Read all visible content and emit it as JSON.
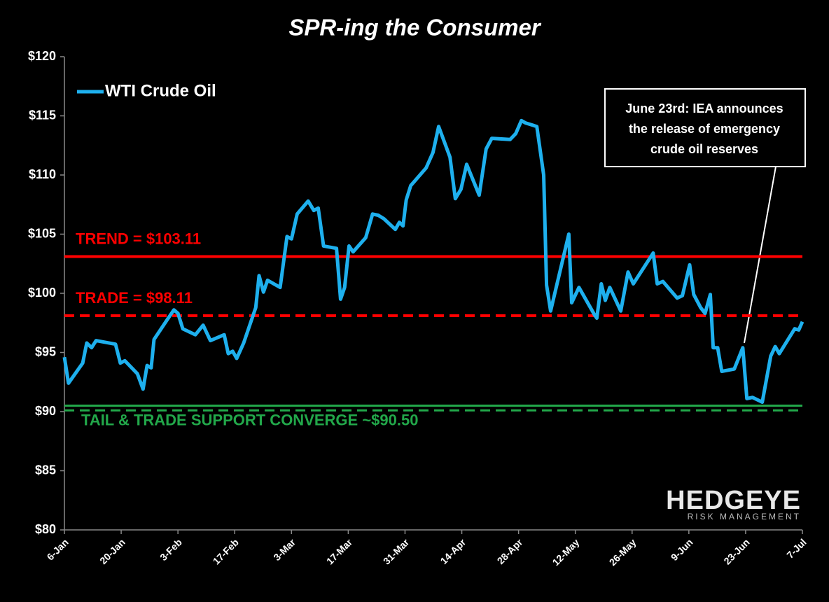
{
  "chart_data": {
    "type": "line",
    "title": "SPR-ing the Consumer",
    "x": [
      0,
      1.0,
      4.5,
      5.5,
      6.7,
      7.8,
      12.6,
      13.8,
      14.9,
      18.0,
      19.4,
      20.4,
      21.4,
      22.1,
      25.6,
      27.0,
      28.0,
      29.2,
      32.3,
      34.2,
      36.0,
      39.4,
      40.4,
      41.5,
      42.5,
      44.2,
      47.2,
      48.0,
      49.1,
      50.1,
      53.2,
      54.9,
      56.0,
      57.4,
      60.1,
      61.5,
      62.6,
      63.9,
      67.1,
      68.1,
      69.1,
      70.2,
      71.2,
      74.3,
      76.0,
      77.4,
      78.8,
      81.6,
      82.6,
      83.5,
      84.3,
      85.4,
      89.2,
      90.9,
      92.3,
      95.1,
      96.4,
      97.8,
      99.2,
      102.3,
      104.0,
      105.4,
      109.9,
      111.3,
      112.7,
      113.7,
      116.5,
      118.2,
      118.9,
      119.9,
      124.4,
      125.1,
      126.9,
      130.7,
      131.3,
      132.4,
      133.4,
      134.5,
      137.2,
      139.0,
      140.3,
      145.2,
      146.2,
      147.6,
      151.1,
      152.4,
      154.2,
      155.2,
      156.9,
      158.0,
      159.3,
      160.0,
      161.1,
      162.1,
      165.2,
      167.3,
      168.3,
      169.7,
      172.1,
      174.2,
      175.3,
      176.3,
      180.1,
      181.1,
      182.0
    ],
    "series": [
      {
        "name": "WTI Crude Oil",
        "color": "#1eb0ee",
        "values": [
          94.6,
          92.4,
          94.1,
          95.8,
          95.4,
          96.0,
          95.7,
          94.1,
          94.3,
          93.2,
          91.9,
          93.9,
          93.7,
          96.1,
          97.9,
          98.6,
          98.3,
          97.0,
          96.5,
          97.3,
          96.0,
          96.5,
          94.9,
          95.1,
          94.5,
          95.8,
          98.8,
          101.5,
          100.1,
          101.1,
          100.5,
          104.8,
          104.6,
          106.7,
          107.8,
          107.0,
          107.2,
          104.0,
          103.8,
          99.5,
          100.5,
          104.0,
          103.5,
          104.7,
          106.7,
          106.6,
          106.3,
          105.4,
          106.0,
          105.7,
          107.9,
          109.1,
          110.6,
          111.9,
          114.1,
          111.5,
          108.0,
          108.8,
          110.9,
          108.3,
          112.2,
          113.1,
          113.0,
          113.5,
          114.6,
          114.4,
          114.1,
          110.0,
          100.7,
          98.5,
          105.0,
          99.2,
          100.5,
          98.2,
          97.9,
          100.8,
          99.4,
          100.5,
          98.5,
          101.8,
          100.8,
          103.4,
          100.8,
          101.0,
          99.6,
          99.8,
          102.4,
          99.9,
          98.8,
          98.3,
          99.9,
          95.4,
          95.4,
          93.4,
          93.6,
          95.4,
          91.1,
          91.2,
          90.8,
          94.7,
          95.5,
          94.9,
          97.0,
          96.9,
          97.6
        ]
      }
    ],
    "xlim": [
      0,
      182
    ],
    "xticks": [
      {
        "value": 0,
        "label": "6-Jan"
      },
      {
        "value": 14,
        "label": "20-Jan"
      },
      {
        "value": 28,
        "label": "3-Feb"
      },
      {
        "value": 42,
        "label": "17-Feb"
      },
      {
        "value": 56,
        "label": "3-Mar"
      },
      {
        "value": 70,
        "label": "17-Mar"
      },
      {
        "value": 84,
        "label": "31-Mar"
      },
      {
        "value": 98,
        "label": "14-Apr"
      },
      {
        "value": 112,
        "label": "28-Apr"
      },
      {
        "value": 126,
        "label": "12-May"
      },
      {
        "value": 140,
        "label": "26-May"
      },
      {
        "value": 154,
        "label": "9-Jun"
      },
      {
        "value": 168,
        "label": "23-Jun"
      },
      {
        "value": 182,
        "label": "7-Jul"
      }
    ],
    "ylim": [
      80,
      120
    ],
    "yticks": [
      {
        "value": 80,
        "label": "$80"
      },
      {
        "value": 85,
        "label": "$85"
      },
      {
        "value": 90,
        "label": "$90"
      },
      {
        "value": 95,
        "label": "$95"
      },
      {
        "value": 100,
        "label": "$100"
      },
      {
        "value": 105,
        "label": "$105"
      },
      {
        "value": 110,
        "label": "$110"
      },
      {
        "value": 115,
        "label": "$115"
      },
      {
        "value": 120,
        "label": "$120"
      }
    ],
    "grid": false,
    "legend": "top-left",
    "reference_lines": [
      {
        "value": 103.11,
        "label": "TREND = $103.11",
        "color": "#ff0000",
        "dashed": false
      },
      {
        "value": 98.11,
        "label": "TRADE = $98.11",
        "color": "#ff0000",
        "dashed": true
      },
      {
        "value": 90.5,
        "label": "TAIL & TRADE SUPPORT CONVERGE ~$90.50",
        "color": "#22a84a",
        "dashed": false
      },
      {
        "value": 90.1,
        "color": "#22a84a",
        "dashed": true
      }
    ],
    "annotation": [
      "June 23rd: IEA announces",
      "the release of emergency",
      "crude oil reserves"
    ],
    "logo": {
      "name": "HEDGEYE",
      "tagline": "RISK MANAGEMENT"
    }
  }
}
